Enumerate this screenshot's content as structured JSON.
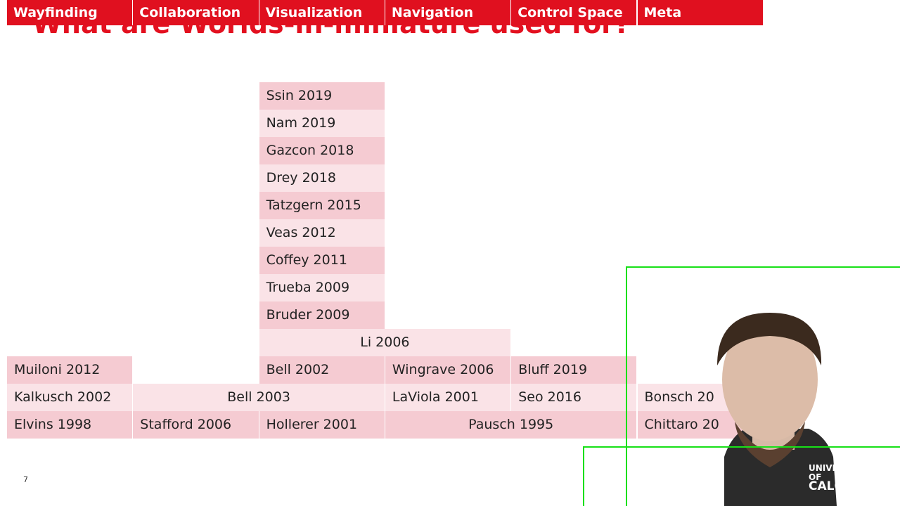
{
  "title": "What are Worlds-in-miniature used for?",
  "table": {
    "headers": [
      "Wayfinding",
      "Collaboration",
      "Visualization",
      "Navigation",
      "Control Space",
      "Meta"
    ],
    "rows": [
      [
        null,
        null,
        "Ssin 2019",
        null,
        null,
        null
      ],
      [
        null,
        null,
        "Nam 2019",
        null,
        null,
        null
      ],
      [
        null,
        null,
        "Gazcon 2018",
        null,
        null,
        null
      ],
      [
        null,
        null,
        "Drey 2018",
        null,
        null,
        null
      ],
      [
        null,
        null,
        "Tatzgern 2015",
        null,
        null,
        null
      ],
      [
        null,
        null,
        "Veas 2012",
        null,
        null,
        null
      ],
      [
        null,
        null,
        "Coffey 2011",
        null,
        null,
        null
      ],
      [
        null,
        null,
        "Trueba 2009",
        null,
        null,
        null
      ],
      [
        null,
        null,
        "Bruder 2009",
        null,
        null,
        null
      ],
      [
        null,
        null,
        {
          "text": "Li 2006",
          "colspan": 2
        },
        null,
        null
      ],
      [
        "Muiloni 2012",
        null,
        "Bell 2002",
        "Wingrave 2006",
        "Bluff 2019",
        null
      ],
      [
        "Kalkusch 2002",
        {
          "text": "Bell 2003",
          "colspan": 2
        },
        "LaViola 2001",
        "Seo 2016",
        "Bonsch 20"
      ],
      [
        "Elvins 1998",
        "Stafford 2006",
        "Hollerer 2001",
        {
          "text": "Pausch 1995",
          "colspan": 2
        },
        "Chittaro 20"
      ]
    ]
  },
  "page_number": "7",
  "logo": {
    "line1": "UNIVERSITY OF",
    "line2": "CALGARY"
  }
}
